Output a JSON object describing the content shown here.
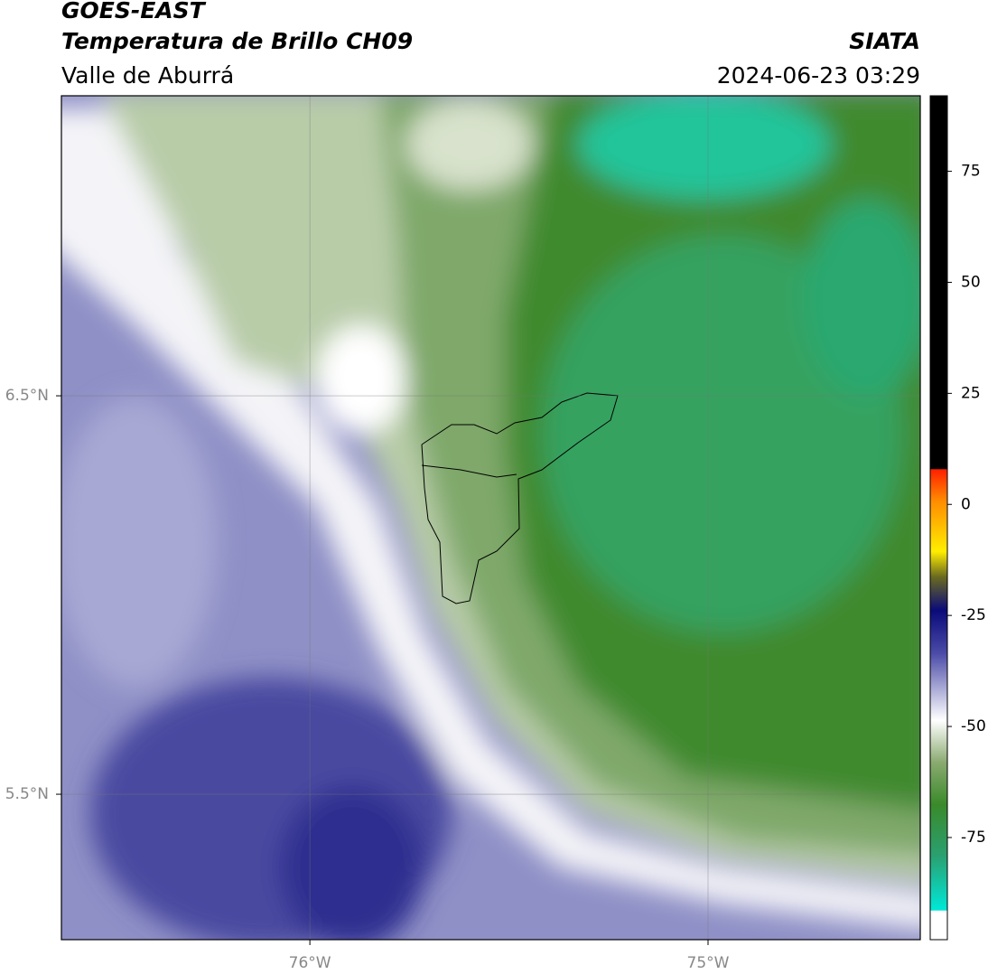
{
  "header": {
    "satellite": "GOES-EAST",
    "product": "Temperatura de Brillo CH09",
    "region": "Valle de Aburrá",
    "agency": "SIATA",
    "timestamp": "2024-06-23 03:29"
  },
  "map": {
    "xlim": [
      -76.624,
      -74.467
    ],
    "ylim": [
      5.135,
      7.253
    ],
    "xticks": [
      {
        "value": -76,
        "label": "76°W"
      },
      {
        "value": -75,
        "label": "75°W"
      }
    ],
    "yticks": [
      {
        "value": 6.5,
        "label": "6.5°N"
      },
      {
        "value": 5.5,
        "label": "5.5°N"
      }
    ]
  },
  "colorbar": {
    "lim": [
      -98,
      92
    ],
    "ticks": [
      75,
      50,
      25,
      0,
      -25,
      -50,
      -75
    ]
  }
}
